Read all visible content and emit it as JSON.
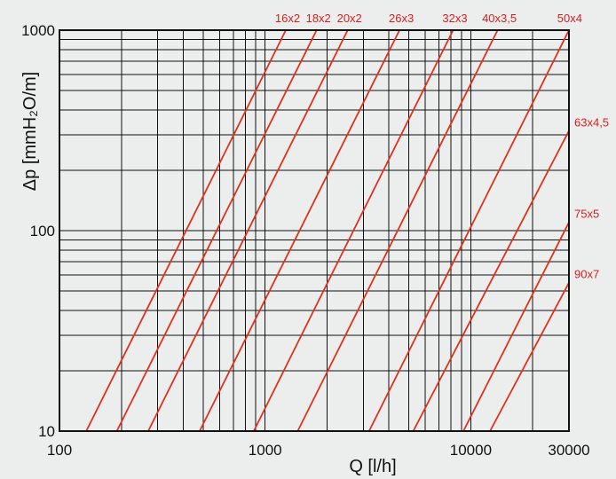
{
  "chart_data": {
    "type": "line",
    "xlabel": "Q [l/h]",
    "ylabel": "Δp [mmH₂O/m]",
    "x_scale": "log",
    "y_scale": "log",
    "xlim": [
      100,
      30000
    ],
    "ylim": [
      10,
      1000
    ],
    "x_ticks": [
      "100",
      "1000",
      "10000",
      "30000"
    ],
    "y_ticks": [
      "10",
      "100",
      "1000"
    ],
    "grid": true,
    "line_color": "#e0301e",
    "series": [
      {
        "name": "16x2",
        "points": [
          [
            135,
            10
          ],
          [
            1260,
            1000
          ]
        ]
      },
      {
        "name": "18x2",
        "points": [
          [
            190,
            10
          ],
          [
            1780,
            1000
          ]
        ]
      },
      {
        "name": "20x2",
        "points": [
          [
            270,
            10
          ],
          [
            2520,
            1000
          ]
        ]
      },
      {
        "name": "26x3",
        "points": [
          [
            480,
            10
          ],
          [
            4500,
            1000
          ]
        ]
      },
      {
        "name": "32x3",
        "points": [
          [
            880,
            10
          ],
          [
            8200,
            1000
          ]
        ]
      },
      {
        "name": "40x3,5",
        "points": [
          [
            1440,
            10
          ],
          [
            13500,
            1000
          ]
        ]
      },
      {
        "name": "50x4",
        "points": [
          [
            3200,
            10
          ],
          [
            30000,
            1000
          ]
        ]
      },
      {
        "name": "63x4,5",
        "points": [
          [
            5250,
            10
          ],
          [
            30000,
            315
          ]
        ]
      },
      {
        "name": "75x5",
        "points": [
          [
            9200,
            10
          ],
          [
            30000,
            110
          ]
        ]
      },
      {
        "name": "90x7",
        "points": [
          [
            12400,
            10
          ],
          [
            30000,
            55
          ]
        ]
      }
    ]
  }
}
